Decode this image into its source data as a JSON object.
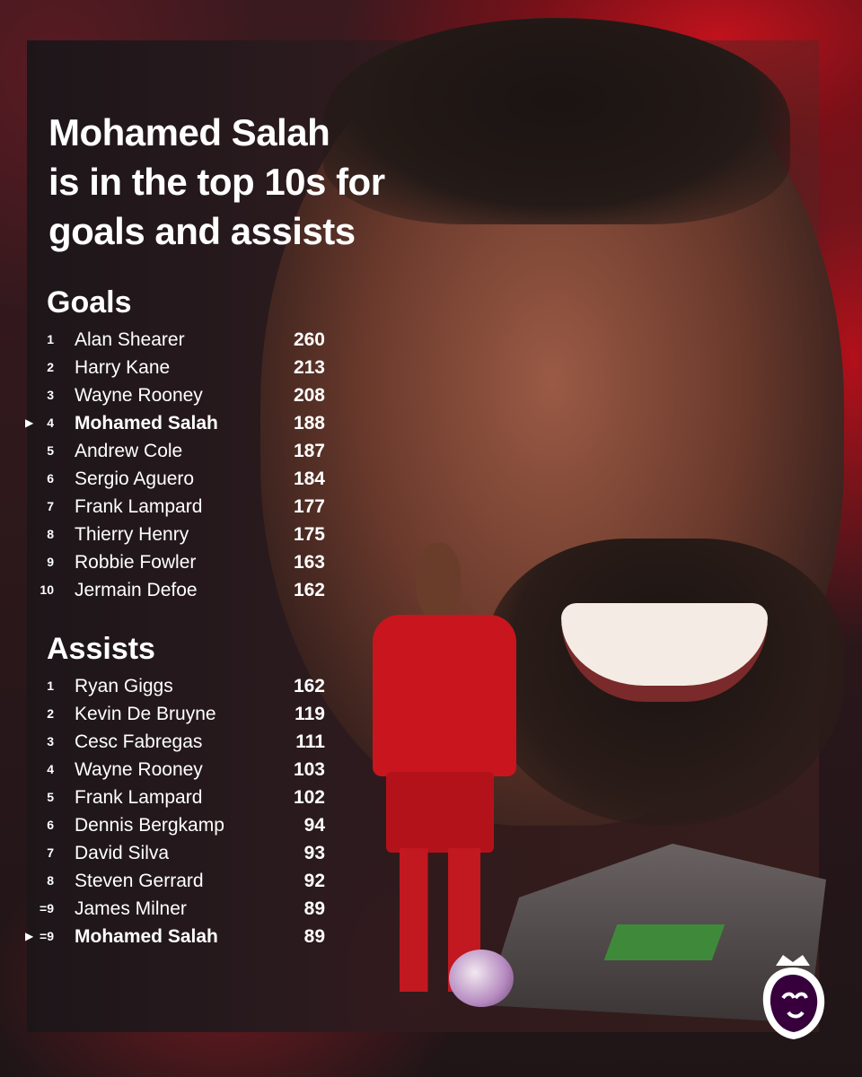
{
  "title": [
    "Mohamed Salah",
    "is in the top 10s for",
    "goals and assists"
  ],
  "goals": {
    "heading": "Goals",
    "rows": [
      {
        "rank": "1",
        "name": "Alan Shearer",
        "value": "260",
        "highlight": false
      },
      {
        "rank": "2",
        "name": "Harry Kane",
        "value": "213",
        "highlight": false
      },
      {
        "rank": "3",
        "name": "Wayne Rooney",
        "value": "208",
        "highlight": false
      },
      {
        "rank": "4",
        "name": "Mohamed Salah",
        "value": "188",
        "highlight": true
      },
      {
        "rank": "5",
        "name": "Andrew Cole",
        "value": "187",
        "highlight": false
      },
      {
        "rank": "6",
        "name": "Sergio Aguero",
        "value": "184",
        "highlight": false
      },
      {
        "rank": "7",
        "name": "Frank Lampard",
        "value": "177",
        "highlight": false
      },
      {
        "rank": "8",
        "name": "Thierry Henry",
        "value": "175",
        "highlight": false
      },
      {
        "rank": "9",
        "name": "Robbie Fowler",
        "value": "163",
        "highlight": false
      },
      {
        "rank": "10",
        "name": "Jermain Defoe",
        "value": "162",
        "highlight": false
      }
    ]
  },
  "assists": {
    "heading": "Assists",
    "rows": [
      {
        "rank": "1",
        "name": "Ryan Giggs",
        "value": "162",
        "highlight": false
      },
      {
        "rank": "2",
        "name": "Kevin De Bruyne",
        "value": "119",
        "highlight": false
      },
      {
        "rank": "3",
        "name": "Cesc Fabregas",
        "value": "111",
        "highlight": false
      },
      {
        "rank": "4",
        "name": "Wayne Rooney",
        "value": "103",
        "highlight": false
      },
      {
        "rank": "5",
        "name": "Frank Lampard",
        "value": "102",
        "highlight": false
      },
      {
        "rank": "6",
        "name": "Dennis Bergkamp",
        "value": "94",
        "highlight": false
      },
      {
        "rank": "7",
        "name": "David Silva",
        "value": "93",
        "highlight": false
      },
      {
        "rank": "8",
        "name": "Steven Gerrard",
        "value": "92",
        "highlight": false
      },
      {
        "rank": "=9",
        "name": "James Milner",
        "value": "89",
        "highlight": false
      },
      {
        "rank": "=9",
        "name": "Mohamed Salah",
        "value": "89",
        "highlight": true
      }
    ]
  },
  "highlight_marker": "▶",
  "icons": {
    "logo": "premier-league-lion-logo"
  },
  "colors": {
    "brand_purple": "#37003c",
    "liverpool_red": "#c9151e"
  }
}
